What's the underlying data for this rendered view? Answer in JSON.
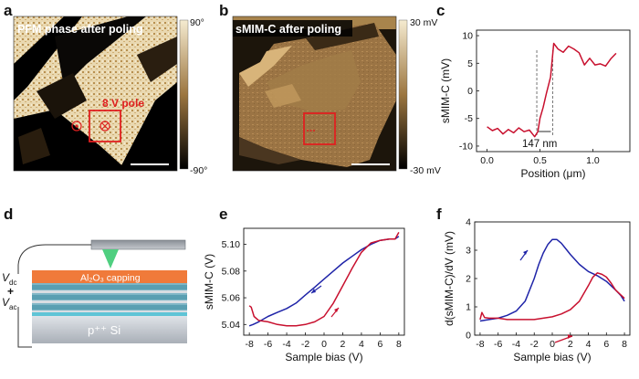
{
  "panel_letters": {
    "a": "a",
    "b": "b",
    "c": "c",
    "d": "d",
    "e": "e",
    "f": "f"
  },
  "panel_a": {
    "title": "PFM phase after poling",
    "annotation": "8 V pole",
    "colorbar_top": "90°",
    "colorbar_bottom": "-90°",
    "colors": {
      "dark": "#000000",
      "light": "#f3e6c4",
      "mid": "#a07a3a",
      "highlight": "#e02020"
    }
  },
  "panel_b": {
    "title": "sMIM-C after poling",
    "colorbar_top": "30 mV",
    "colorbar_bottom": "-30 mV",
    "colors": {
      "dark": "#1a1208",
      "light": "#f2d9a8",
      "mid": "#8c6a38",
      "highlight": "#e02020"
    }
  },
  "panel_d": {
    "capping_label": "Al₂O₃ capping",
    "vdc_label": "V",
    "vdc_sub": "dc",
    "plus": "+",
    "vac_label": "V",
    "vac_sub": "ac",
    "substrate_label": "p⁺⁺ Si",
    "colors": {
      "capping": "#f07a3a",
      "substrate": "#c8ccd2",
      "layers": "#3a8aa0",
      "tip": "#5fd08a"
    }
  },
  "chart_data": [
    {
      "id": "c",
      "type": "line",
      "xlabel": "Position (μm)",
      "ylabel": "sMIM-C (mV)",
      "xlim": [
        -0.1,
        1.35
      ],
      "ylim": [
        -11,
        11
      ],
      "xticks": [
        "0.0",
        "0.5",
        "1.0"
      ],
      "xtick_values": [
        0.0,
        0.5,
        1.0
      ],
      "yticks": [
        "-10",
        "-5",
        "0",
        "5",
        "10"
      ],
      "ytick_values": [
        -10,
        -5,
        0,
        5,
        10
      ],
      "annotation": "147 nm",
      "dashed_x": [
        0.47,
        0.62
      ],
      "series": [
        {
          "color": "#c8102e",
          "x": [
            0.0,
            0.05,
            0.1,
            0.15,
            0.2,
            0.25,
            0.3,
            0.35,
            0.4,
            0.45,
            0.48,
            0.5,
            0.53,
            0.56,
            0.6,
            0.63,
            0.67,
            0.72,
            0.77,
            0.82,
            0.87,
            0.92,
            0.97,
            1.02,
            1.07,
            1.12,
            1.17,
            1.22
          ],
          "y": [
            -6.5,
            -7.2,
            -6.8,
            -7.8,
            -7.0,
            -7.6,
            -6.7,
            -7.4,
            -7.1,
            -8.3,
            -7.4,
            -5.0,
            -3.0,
            -0.5,
            2.5,
            8.6,
            7.6,
            7.0,
            8.1,
            7.6,
            6.9,
            4.7,
            5.9,
            4.7,
            4.9,
            4.5,
            5.8,
            6.8
          ]
        }
      ]
    },
    {
      "id": "e",
      "type": "line",
      "xlabel": "Sample bias (V)",
      "ylabel": "sMIM-C (V)",
      "xlim": [
        -8.6,
        8.6
      ],
      "ylim": [
        5.032,
        5.112
      ],
      "xticks": [
        "-8",
        "-6",
        "-4",
        "-2",
        "0",
        "2",
        "4",
        "6",
        "8"
      ],
      "xtick_values": [
        -8,
        -6,
        -4,
        -2,
        0,
        2,
        4,
        6,
        8
      ],
      "yticks": [
        "5.04",
        "5.06",
        "5.08",
        "5.10"
      ],
      "ytick_values": [
        5.04,
        5.06,
        5.08,
        5.1
      ],
      "series": [
        {
          "color": "#1f24a8",
          "x": [
            -8.0,
            -7.6,
            -7.0,
            -6.0,
            -5.0,
            -4.0,
            -3.0,
            -2.0,
            -1.0,
            0.0,
            1.0,
            2.0,
            3.0,
            4.0,
            5.0,
            6.0,
            7.0,
            7.6,
            8.0
          ],
          "y": [
            5.039,
            5.04,
            5.042,
            5.046,
            5.049,
            5.052,
            5.056,
            5.062,
            5.068,
            5.074,
            5.08,
            5.086,
            5.091,
            5.096,
            5.1,
            5.103,
            5.104,
            5.104,
            5.106
          ]
        },
        {
          "color": "#c8102e",
          "x": [
            8.0,
            7.6,
            7.0,
            6.0,
            5.0,
            4.0,
            3.0,
            2.0,
            1.0,
            0.0,
            -1.0,
            -2.0,
            -3.0,
            -4.0,
            -5.0,
            -6.0,
            -7.0,
            -7.5,
            -7.8,
            -8.0
          ],
          "y": [
            5.109,
            5.104,
            5.104,
            5.103,
            5.101,
            5.094,
            5.082,
            5.069,
            5.056,
            5.046,
            5.042,
            5.04,
            5.039,
            5.039,
            5.04,
            5.042,
            5.043,
            5.046,
            5.053,
            5.054
          ]
        }
      ]
    },
    {
      "id": "f",
      "type": "line",
      "xlabel": "Sample bias (V)",
      "ylabel": "d(sMIM-C)/dV (mV)",
      "xlim": [
        -8.6,
        8.6
      ],
      "ylim": [
        0,
        4
      ],
      "xticks": [
        "-8",
        "-6",
        "-4",
        "-2",
        "0",
        "2",
        "4",
        "6",
        "8"
      ],
      "xtick_values": [
        -8,
        -6,
        -4,
        -2,
        0,
        2,
        4,
        6,
        8
      ],
      "yticks": [
        "0",
        "1",
        "2",
        "3",
        "4"
      ],
      "ytick_values": [
        0,
        1,
        2,
        3,
        4
      ],
      "series": [
        {
          "color": "#1f24a8",
          "x": [
            -8.0,
            -7.0,
            -6.0,
            -5.0,
            -4.0,
            -3.0,
            -2.0,
            -1.5,
            -1.0,
            -0.5,
            0.0,
            0.5,
            1.0,
            1.5,
            2.0,
            3.0,
            4.0,
            5.0,
            6.0,
            7.0,
            7.6,
            8.0
          ],
          "y": [
            0.5,
            0.55,
            0.6,
            0.7,
            0.85,
            1.2,
            2.0,
            2.5,
            2.9,
            3.2,
            3.38,
            3.38,
            3.25,
            3.05,
            2.85,
            2.5,
            2.25,
            2.1,
            1.9,
            1.6,
            1.4,
            1.2
          ]
        },
        {
          "color": "#c8102e",
          "x": [
            8.0,
            7.5,
            7.0,
            6.5,
            6.0,
            5.5,
            5.0,
            4.5,
            4.0,
            3.0,
            2.0,
            1.0,
            0.0,
            -1.0,
            -2.0,
            -3.0,
            -4.0,
            -5.0,
            -6.0,
            -7.0,
            -7.5,
            -7.8,
            -8.0
          ],
          "y": [
            1.3,
            1.45,
            1.6,
            1.85,
            2.05,
            2.15,
            2.2,
            2.05,
            1.75,
            1.2,
            0.9,
            0.75,
            0.65,
            0.6,
            0.55,
            0.55,
            0.55,
            0.55,
            0.6,
            0.6,
            0.62,
            0.8,
            0.55
          ]
        }
      ]
    }
  ]
}
